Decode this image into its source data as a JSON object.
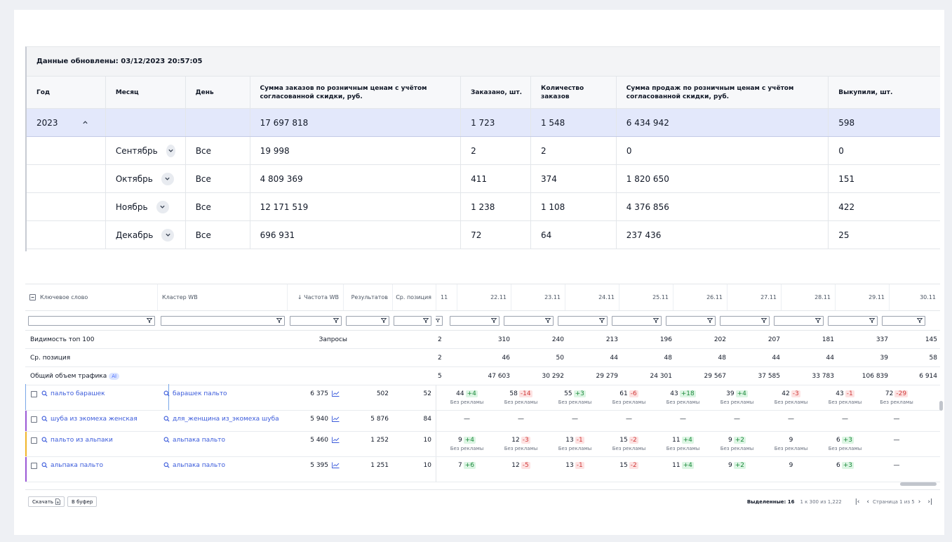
{
  "summary": {
    "updated": "Данные обновлены: 03/12/2023 20:57:05",
    "headers": {
      "year": "Год",
      "month": "Месяц",
      "day": "День",
      "sum_orders": "Сумма заказов по розничным ценам с учётом согласованной скидки, руб.",
      "ordered": "Заказано, шт.",
      "order_count": "Количество заказов",
      "sum_sales": "Сумма продаж по розничным ценам с учётом согласованной скидки, руб.",
      "bought": "Выкупили, шт."
    },
    "total": {
      "year": "2023",
      "sum_orders": "17 697 818",
      "ordered": "1 723",
      "order_count": "1 548",
      "sum_sales": "6 434 942",
      "bought": "598"
    },
    "rows": [
      {
        "month": "Сентябрь",
        "day": "Все",
        "sum_orders": "19 998",
        "ordered": "2",
        "order_count": "2",
        "sum_sales": "0",
        "bought": "0"
      },
      {
        "month": "Октябрь",
        "day": "Все",
        "sum_orders": "4 809 369",
        "ordered": "411",
        "order_count": "374",
        "sum_sales": "1 820 650",
        "bought": "151"
      },
      {
        "month": "Ноябрь",
        "day": "Все",
        "sum_orders": "12 171 519",
        "ordered": "1 238",
        "order_count": "1 108",
        "sum_sales": "4 376 856",
        "bought": "422"
      },
      {
        "month": "Декабрь",
        "day": "Все",
        "sum_orders": "696 931",
        "ordered": "72",
        "order_count": "64",
        "sum_sales": "237 436",
        "bought": "25"
      }
    ]
  },
  "keywords": {
    "headers": {
      "keyword": "Ключевое слово",
      "cluster": "Кластер WB",
      "freq": "↓ Частота WB",
      "results": "Результатов",
      "avg_pos": "Ср. позиция",
      "cut": "11",
      "days": [
        "22.11",
        "23.11",
        "24.11",
        "25.11",
        "26.11",
        "27.11",
        "28.11",
        "29.11",
        "30.11"
      ]
    },
    "pinned": [
      {
        "label": "Видимость топ 100",
        "mid": "Запросы",
        "cut": "2",
        "values": [
          "310",
          "240",
          "213",
          "196",
          "202",
          "207",
          "181",
          "337",
          "145"
        ]
      },
      {
        "label": "Ср. позиция",
        "mid": "",
        "cut": "2",
        "values": [
          "46",
          "50",
          "44",
          "48",
          "48",
          "44",
          "44",
          "39",
          "58"
        ]
      },
      {
        "label": "Общий объем трафика",
        "badge": "AI",
        "mid": "",
        "cut": "5",
        "values": [
          "47 603",
          "30 292",
          "29 279",
          "24 301",
          "29 567",
          "37 585",
          "33 783",
          "106 839",
          "6 914"
        ]
      }
    ],
    "rows": [
      {
        "keyword": "пальто барашек",
        "cluster": "барашек пальто",
        "freq": "6 375",
        "results": "502",
        "avg_pos": "52",
        "accent": "",
        "days": [
          {
            "v": "44",
            "d": "+4",
            "t": "up",
            "s": "Без рекламы"
          },
          {
            "v": "58",
            "d": "-14",
            "t": "dn",
            "s": "Без рекламы"
          },
          {
            "v": "55",
            "d": "+3",
            "t": "up",
            "s": "Без рекламы"
          },
          {
            "v": "61",
            "d": "-6",
            "t": "dn",
            "s": "Без рекламы"
          },
          {
            "v": "43",
            "d": "+18",
            "t": "up",
            "s": "Без рекламы"
          },
          {
            "v": "39",
            "d": "+4",
            "t": "up",
            "s": "Без рекламы"
          },
          {
            "v": "42",
            "d": "-3",
            "t": "dn",
            "s": "Без рекламы"
          },
          {
            "v": "43",
            "d": "-1",
            "t": "dn",
            "s": "Без рекламы"
          },
          {
            "v": "72",
            "d": "-29",
            "t": "dn",
            "s": "Без рекламы"
          }
        ]
      },
      {
        "keyword": "шуба из экомеха женская",
        "cluster": "для_женщина из_экомеха шуба",
        "freq": "5 940",
        "results": "5 876",
        "avg_pos": "84",
        "accent": "#9b59d6",
        "days": [
          {
            "v": "—"
          },
          {
            "v": "—"
          },
          {
            "v": "—"
          },
          {
            "v": "—"
          },
          {
            "v": "—"
          },
          {
            "v": "—"
          },
          {
            "v": "—"
          },
          {
            "v": "—"
          },
          {
            "v": "—"
          }
        ]
      },
      {
        "keyword": "пальто из альпаки",
        "cluster": "альпака пальто",
        "freq": "5 460",
        "results": "1 252",
        "avg_pos": "10",
        "accent": "#f0b429",
        "days": [
          {
            "v": "9",
            "d": "+4",
            "t": "up",
            "s": "Без рекламы"
          },
          {
            "v": "12",
            "d": "-3",
            "t": "dn",
            "s": "Без рекламы"
          },
          {
            "v": "13",
            "d": "-1",
            "t": "dn",
            "s": "Без рекламы"
          },
          {
            "v": "15",
            "d": "-2",
            "t": "dn",
            "s": "Без рекламы"
          },
          {
            "v": "11",
            "d": "+4",
            "t": "up",
            "s": "Без рекламы"
          },
          {
            "v": "9",
            "d": "+2",
            "t": "up",
            "s": "Без рекламы"
          },
          {
            "v": "9",
            "s": "Без рекламы"
          },
          {
            "v": "6",
            "d": "+3",
            "t": "up",
            "s": "Без рекламы"
          },
          {
            "v": "—"
          }
        ]
      },
      {
        "keyword": "альпака пальто",
        "cluster": "альпака пальто",
        "freq": "5 395",
        "results": "1 251",
        "avg_pos": "10",
        "accent": "#9b59d6",
        "days": [
          {
            "v": "7",
            "d": "+6",
            "t": "up"
          },
          {
            "v": "12",
            "d": "-5",
            "t": "dn"
          },
          {
            "v": "13",
            "d": "-1",
            "t": "dn"
          },
          {
            "v": "15",
            "d": "-2",
            "t": "dn"
          },
          {
            "v": "11",
            "d": "+4",
            "t": "up"
          },
          {
            "v": "9",
            "d": "+2",
            "t": "up"
          },
          {
            "v": "9"
          },
          {
            "v": "6",
            "d": "+3",
            "t": "up"
          },
          {
            "v": "—"
          }
        ]
      }
    ],
    "footer": {
      "download": "Скачать",
      "copy": "В буфер",
      "selected": "Выделенные: 16",
      "range": "1 к 300 из 1,222",
      "page": "Страница 1 из 5"
    }
  }
}
